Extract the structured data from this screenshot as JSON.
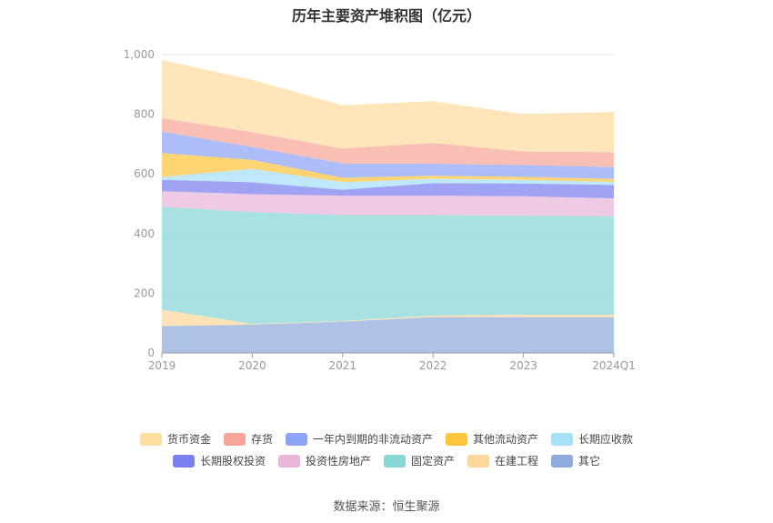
{
  "chart_data": {
    "type": "area",
    "stacked": true,
    "title": "历年主要资产堆积图（亿元）",
    "categories": [
      "2019",
      "2020",
      "2021",
      "2022",
      "2023",
      "2024Q1"
    ],
    "y_ticks": [
      "0",
      "200",
      "400",
      "600",
      "800",
      "1,000"
    ],
    "ylim": [
      0,
      1000
    ],
    "series": [
      {
        "name": "其它",
        "color": "#8FAADC",
        "values": [
          90,
          95,
          105,
          120,
          120,
          120
        ]
      },
      {
        "name": "在建工程",
        "color": "#FFD79A",
        "values": [
          55,
          2,
          2,
          5,
          8,
          8
        ]
      },
      {
        "name": "固定资产",
        "color": "#86D6D6",
        "values": [
          345,
          375,
          355,
          337,
          332,
          330
        ]
      },
      {
        "name": "投资性房地产",
        "color": "#E8B6D9",
        "values": [
          52,
          60,
          65,
          65,
          65,
          60
        ]
      },
      {
        "name": "长期股权投资",
        "color": "#7B7FEF",
        "values": [
          38,
          40,
          20,
          42,
          43,
          45
        ]
      },
      {
        "name": "长期应收款",
        "color": "#A6E1F8",
        "values": [
          10,
          45,
          25,
          15,
          12,
          10
        ]
      },
      {
        "name": "其他流动资产",
        "color": "#FFC53D",
        "values": [
          80,
          30,
          15,
          10,
          10,
          10
        ]
      },
      {
        "name": "一年内到期的非流动资产",
        "color": "#8CA3F7",
        "values": [
          72,
          43,
          48,
          40,
          40,
          40
        ]
      },
      {
        "name": "存货",
        "color": "#F7A597",
        "values": [
          45,
          50,
          50,
          70,
          45,
          50
        ]
      },
      {
        "name": "货币资金",
        "color": "#FFDCA0",
        "values": [
          195,
          175,
          145,
          140,
          125,
          135
        ]
      }
    ],
    "legend_rows": [
      [
        "货币资金",
        "存货",
        "一年内到期的非流动资产",
        "其他流动资产",
        "长期应收款"
      ],
      [
        "长期股权投资",
        "投资性房地产",
        "固定资产",
        "在建工程",
        "其它"
      ]
    ]
  },
  "source": "数据来源：恒生聚源"
}
